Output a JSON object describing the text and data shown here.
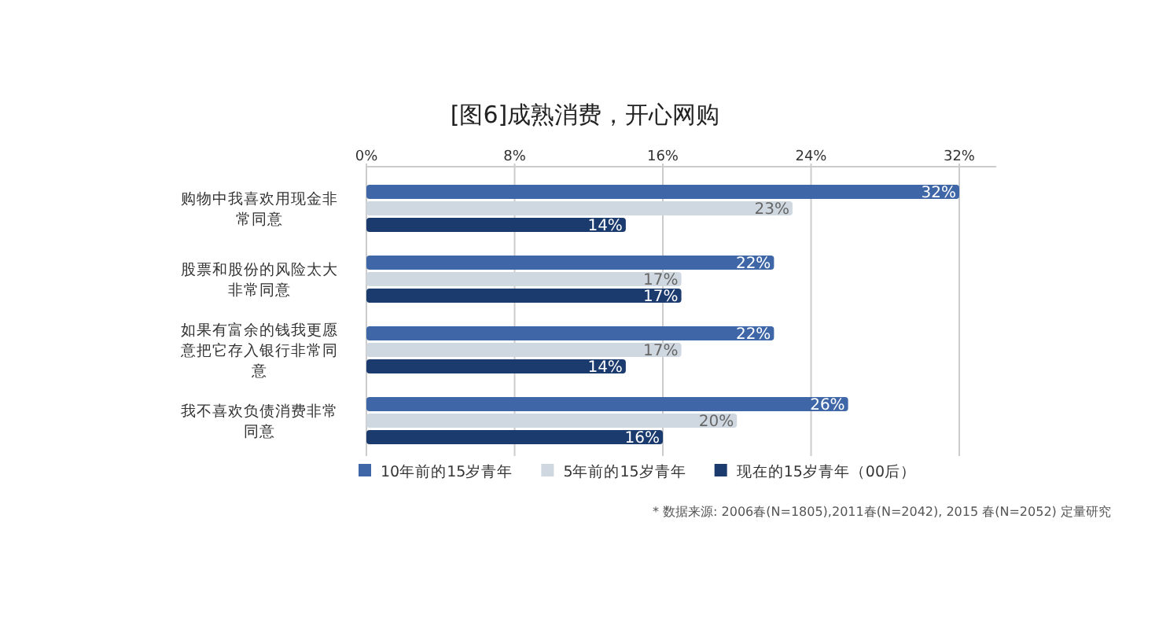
{
  "chart_data": {
    "type": "bar",
    "orientation": "horizontal",
    "title": "[图6]成熟消费，开心网购",
    "categories": [
      "购物中我喜欢用现金非常同意",
      "股票和股份的风险太大非常同意",
      "如果有富余的钱我更愿意把它存入银行非常同意",
      "我不喜欢负债消费非常同意"
    ],
    "series": [
      {
        "name": "10年前的15岁青年",
        "color": "#3f67a8",
        "values": [
          32,
          22,
          22,
          26
        ],
        "value_labels": [
          "32%",
          "22%",
          "22%",
          "26%"
        ]
      },
      {
        "name": "5年前的15岁青年",
        "color": "#cfd8e0",
        "values": [
          23,
          17,
          17,
          20
        ],
        "value_labels": [
          "23%",
          "17%",
          "17%",
          "20%"
        ]
      },
      {
        "name": "现在的15岁青年（00后）",
        "color": "#1b3a6e",
        "values": [
          14,
          17,
          14,
          16
        ],
        "value_labels": [
          "14%",
          "17%",
          "14%",
          "16%"
        ]
      }
    ],
    "xlim": [
      0,
      34
    ],
    "xticks": [
      {
        "value": 0,
        "label": "0%"
      },
      {
        "value": 8,
        "label": "8%"
      },
      {
        "value": 16,
        "label": "16%"
      },
      {
        "value": 24,
        "label": "24%"
      },
      {
        "value": 32,
        "label": "32%"
      }
    ],
    "grid": "x",
    "legend": "bottom",
    "annotations": [
      "* 数据来源: 2006春(N=1805),2011春(N=2042), 2015 春(N=2052) 定量研究"
    ]
  }
}
